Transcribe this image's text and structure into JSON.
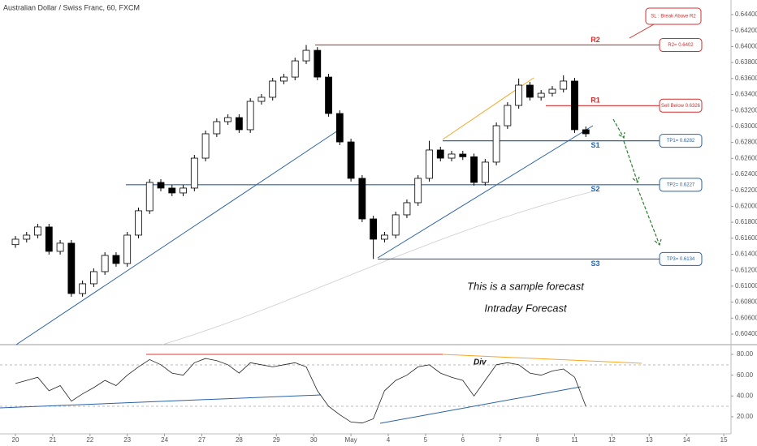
{
  "chart_data": {
    "type": "candlestick",
    "title": "Australian Dollar / Swiss Franc, 60, FXCM",
    "x": [
      0,
      0.3,
      0.6,
      0.9,
      1.2,
      1.5,
      1.8,
      2.1,
      2.4,
      2.7,
      3,
      3.3,
      3.6,
      3.9,
      4.2,
      4.5,
      4.8,
      5.1,
      5.4,
      5.7,
      6,
      6.3,
      6.6,
      6.9,
      7.2,
      7.5,
      7.8,
      8.1,
      8.4,
      8.7,
      9,
      9.3,
      9.6,
      9.9,
      10.2,
      10.5,
      10.8,
      11.1,
      11.4,
      11.7,
      12,
      12.3,
      12.6,
      12.9,
      13.2,
      13.5,
      13.8,
      14.1,
      14.4,
      14.7,
      15,
      15.3
    ],
    "open": [
      0.6152,
      0.61588,
      0.61639,
      0.61741,
      0.61436,
      0.61538,
      0.60908,
      0.6103,
      0.61182,
      0.61385,
      0.61284,
      0.61639,
      0.61944,
      0.62299,
      0.62228,
      0.62167,
      0.62228,
      0.62603,
      0.62908,
      0.6306,
      0.63111,
      0.62959,
      0.63314,
      0.63365,
      0.63568,
      0.63618,
      0.63821,
      0.63953,
      0.63618,
      0.63162,
      0.62806,
      0.6235,
      0.61842,
      0.61588,
      0.61639,
      0.61893,
      0.62045,
      0.6235,
      0.62705,
      0.62603,
      0.62654,
      0.6262,
      0.62299,
      0.62553,
      0.63009,
      0.63263,
      0.63517,
      0.63365,
      0.63415,
      0.63466,
      0.63568,
      0.62959
    ],
    "high": [
      0.61628,
      0.61679,
      0.61781,
      0.61781,
      0.61578,
      0.61578,
      0.6107,
      0.61222,
      0.61425,
      0.61425,
      0.61679,
      0.61984,
      0.62339,
      0.62339,
      0.62268,
      0.62268,
      0.62643,
      0.62948,
      0.631,
      0.63151,
      0.63151,
      0.63354,
      0.63405,
      0.63608,
      0.63658,
      0.63861,
      0.6402,
      0.63993,
      0.63658,
      0.63202,
      0.62846,
      0.6239,
      0.61882,
      0.61679,
      0.61933,
      0.62085,
      0.6239,
      0.6282,
      0.62745,
      0.62694,
      0.62694,
      0.6266,
      0.62593,
      0.63049,
      0.63303,
      0.636,
      0.63557,
      0.63455,
      0.63506,
      0.6364,
      0.63608,
      0.62999
    ],
    "low": [
      0.6148,
      0.61548,
      0.61599,
      0.61396,
      0.61396,
      0.60868,
      0.60868,
      0.6099,
      0.61142,
      0.61244,
      0.61244,
      0.61599,
      0.61904,
      0.62188,
      0.62127,
      0.62127,
      0.62188,
      0.62563,
      0.62868,
      0.6302,
      0.62919,
      0.62919,
      0.63274,
      0.63325,
      0.63528,
      0.63578,
      0.63781,
      0.63578,
      0.63122,
      0.62766,
      0.6231,
      0.61802,
      0.6134,
      0.61548,
      0.61599,
      0.61853,
      0.62005,
      0.6231,
      0.62563,
      0.62563,
      0.6258,
      0.62259,
      0.62259,
      0.62513,
      0.62969,
      0.63223,
      0.63325,
      0.63325,
      0.63375,
      0.63426,
      0.62919,
      0.62868
    ],
    "close": [
      0.61588,
      0.61639,
      0.61741,
      0.61436,
      0.61538,
      0.60908,
      0.6103,
      0.61182,
      0.61385,
      0.61284,
      0.61639,
      0.61944,
      0.62299,
      0.62228,
      0.62167,
      0.62228,
      0.62603,
      0.62908,
      0.6306,
      0.63111,
      0.62959,
      0.63314,
      0.63365,
      0.63568,
      0.63618,
      0.63821,
      0.63953,
      0.63618,
      0.63162,
      0.62806,
      0.6235,
      0.61842,
      0.61588,
      0.61639,
      0.61893,
      0.62045,
      0.6235,
      0.62705,
      0.62603,
      0.62654,
      0.6262,
      0.62299,
      0.62553,
      0.63009,
      0.63263,
      0.63517,
      0.63365,
      0.63415,
      0.63466,
      0.63568,
      0.62959,
      0.62908
    ],
    "up_color": "#ffffff",
    "down_color": "#000000",
    "xlim": [
      -0.414,
      19.194
    ],
    "xticks": [
      {
        "value": 0,
        "label": "20"
      },
      {
        "value": 1,
        "label": "21"
      },
      {
        "value": 2,
        "label": "22"
      },
      {
        "value": 3,
        "label": "23"
      },
      {
        "value": 4,
        "label": "24"
      },
      {
        "value": 5,
        "label": "27"
      },
      {
        "value": 6,
        "label": "28"
      },
      {
        "value": 7,
        "label": "29"
      },
      {
        "value": 8,
        "label": "30"
      },
      {
        "value": 9,
        "label": "May"
      },
      {
        "value": 10,
        "label": "4"
      },
      {
        "value": 11,
        "label": "5"
      },
      {
        "value": 12,
        "label": "6"
      },
      {
        "value": 13,
        "label": "7"
      },
      {
        "value": 14,
        "label": "8"
      },
      {
        "value": 15,
        "label": "11"
      },
      {
        "value": 16,
        "label": "12"
      },
      {
        "value": 17,
        "label": "13"
      },
      {
        "value": 18,
        "label": "14"
      },
      {
        "value": 19,
        "label": "15"
      }
    ],
    "ylim": [
      0.60268,
      0.64583
    ],
    "yticks": [
      {
        "value": 0.604,
        "label": "0.60400"
      },
      {
        "value": 0.606,
        "label": "0.60600"
      },
      {
        "value": 0.608,
        "label": "0.60800"
      },
      {
        "value": 0.61,
        "label": "0.61000"
      },
      {
        "value": 0.612,
        "label": "0.61200"
      },
      {
        "value": 0.614,
        "label": "0.61400"
      },
      {
        "value": 0.616,
        "label": "0.61600"
      },
      {
        "value": 0.618,
        "label": "0.61800"
      },
      {
        "value": 0.62,
        "label": "0.62000"
      },
      {
        "value": 0.622,
        "label": "0.62200"
      },
      {
        "value": 0.624,
        "label": "0.62400"
      },
      {
        "value": 0.626,
        "label": "0.62600"
      },
      {
        "value": 0.628,
        "label": "0.62800"
      },
      {
        "value": 0.63,
        "label": "0.63000"
      },
      {
        "value": 0.632,
        "label": "0.63200"
      },
      {
        "value": 0.634,
        "label": "0.63400"
      },
      {
        "value": 0.636,
        "label": "0.63600"
      },
      {
        "value": 0.638,
        "label": "0.63800"
      },
      {
        "value": 0.64,
        "label": "0.64000"
      },
      {
        "value": 0.642,
        "label": "0.64200"
      },
      {
        "value": 0.644,
        "label": "0.64400"
      }
    ],
    "levels": [
      {
        "name": "R2",
        "value": 0.6402,
        "label": "R2= 0.6402",
        "color": "#d32f2f"
      },
      {
        "name": "R1",
        "value": 0.6326,
        "label": "Sell Below 0.6326",
        "color": "#d32f2f"
      },
      {
        "name": "S1",
        "value": 0.6282,
        "label": "TP1= 0.6282",
        "color": "#2962a8"
      },
      {
        "name": "S2",
        "value": 0.6227,
        "label": "TP2= 0.6227",
        "color": "#2962a8"
      },
      {
        "name": "S3",
        "value": 0.6134,
        "label": "TP3= 0.6134",
        "color": "#2962a8"
      }
    ],
    "sl_note": "SL : Break Above R2",
    "sample_text": "This is a sample forecast",
    "forecast_text": "Intraday Forecast",
    "div_label": "Div",
    "rsi": {
      "color": "#222222",
      "values": [
        52,
        55,
        58,
        45,
        50,
        35,
        42,
        48,
        55,
        50,
        60,
        68,
        75,
        70,
        62,
        60,
        72,
        76,
        74,
        70,
        62,
        72,
        70,
        68,
        70,
        72,
        68,
        45,
        30,
        22,
        15,
        14,
        18,
        45,
        55,
        60,
        68,
        70,
        62,
        58,
        55,
        40,
        55,
        70,
        72,
        70,
        62,
        60,
        64,
        66,
        58,
        30
      ],
      "ylim": [
        3.6,
        89.35
      ],
      "yticks": [
        {
          "value": 20,
          "label": "20.00"
        },
        {
          "value": 40,
          "label": "40.00"
        },
        {
          "value": 60,
          "label": "60.00"
        },
        {
          "value": 80,
          "label": "80.00"
        }
      ]
    }
  }
}
